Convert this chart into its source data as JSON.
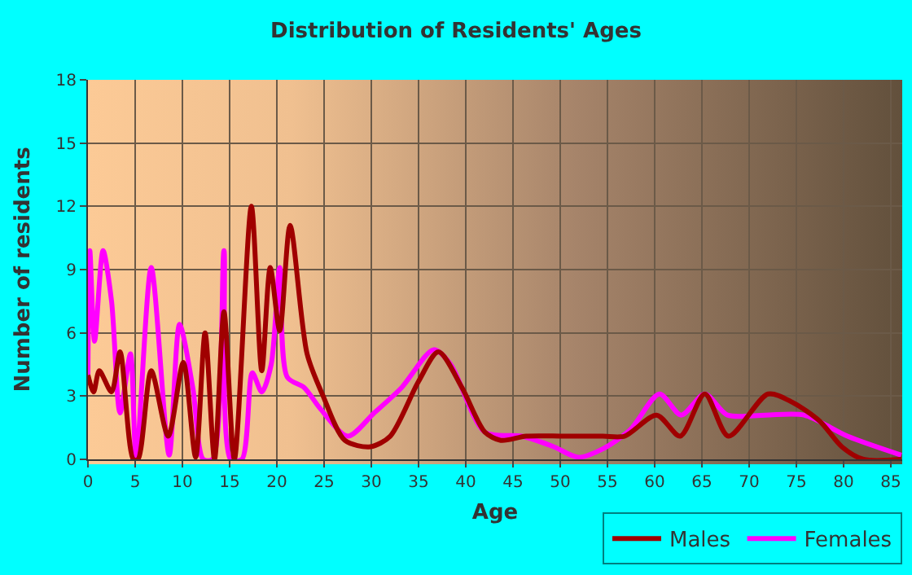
{
  "chart_data": {
    "type": "line",
    "title": "Distribution of Residents' Ages",
    "xlabel": "Age",
    "ylabel": "Number of residents",
    "xlim": [
      0,
      86.2
    ],
    "xticks": [
      0,
      5,
      10,
      15,
      20,
      25,
      30,
      35,
      40,
      45,
      50,
      55,
      60,
      65,
      70,
      75,
      80,
      85
    ],
    "ylim": [
      0,
      18
    ],
    "yticks": [
      0,
      3,
      6,
      9,
      12,
      15,
      18
    ],
    "grid": true,
    "legend": "bottom right",
    "marker": "none",
    "line_style": "solid",
    "series": [
      {
        "name": "Males",
        "color": "#a00000",
        "x": [
          0,
          0.6,
          1.2,
          2.5,
          3.4,
          4.8,
          5.3,
          6.7,
          8.5,
          10.1,
          11.4,
          12.4,
          13.4,
          14.4,
          15.5,
          17.3,
          18.4,
          19.3,
          20.3,
          21.4,
          23.2,
          24.9,
          27.2,
          29.9,
          32,
          35,
          37.1,
          39.6,
          42,
          43.7,
          46.4,
          50.4,
          54.5,
          56.8,
          60.2,
          62.7,
          65.3,
          67.8,
          72,
          74.6,
          77.5,
          79.8,
          82.1,
          86.1
        ],
        "values": [
          4,
          3.2,
          4.2,
          3.2,
          5.1,
          0,
          0,
          4.2,
          1.1,
          4.6,
          0.1,
          6,
          0,
          7,
          0,
          12,
          4.2,
          9.1,
          6.1,
          11.1,
          5,
          3,
          0.9,
          0.6,
          1.1,
          3.7,
          5.1,
          3.4,
          1.3,
          0.9,
          1.1,
          1.1,
          1.1,
          1.1,
          2.1,
          1.1,
          3.1,
          1.1,
          3.1,
          2.7,
          1.8,
          0.6,
          0,
          0
        ]
      },
      {
        "name": "Females",
        "color": "#ff00ff",
        "x": [
          0,
          0.2,
          0.7,
          1.6,
          2.5,
          3.4,
          4.5,
          5.1,
          6.7,
          8.6,
          9.7,
          11.1,
          12.2,
          13.2,
          14.4,
          15.1,
          16.3,
          17.4,
          18.4,
          19.4,
          20.3,
          21.1,
          22.9,
          24.6,
          27.5,
          30.3,
          33.2,
          36.6,
          38.4,
          42,
          45.9,
          49.3,
          51.9,
          54.5,
          57.4,
          60.5,
          62.8,
          65.3,
          67.7,
          71.7,
          75.8,
          80.4,
          86.1
        ],
        "values": [
          4,
          9.9,
          5.6,
          9.9,
          7.5,
          2.2,
          5,
          0,
          9.1,
          0.2,
          6.4,
          3.4,
          0,
          0,
          9.9,
          0,
          0,
          4.1,
          3.2,
          4.5,
          9.1,
          3.9,
          3.4,
          2.4,
          1.1,
          2.2,
          3.4,
          5.2,
          4.5,
          1.3,
          1.1,
          0.6,
          0.1,
          0.5,
          1.4,
          3.1,
          2.1,
          3.1,
          2.1,
          2.1,
          2.1,
          1.1,
          0.2
        ]
      }
    ]
  }
}
